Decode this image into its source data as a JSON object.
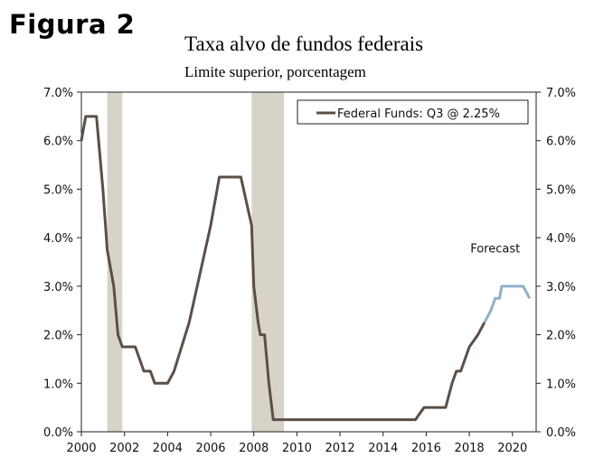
{
  "figure_label": "Figura 2",
  "chart_data": {
    "type": "line",
    "title": "Taxa alvo de fundos federais",
    "subtitle": "Limite superior, porcentagem",
    "xlabel": "",
    "ylabel": "",
    "xlim": [
      2000,
      2021.1
    ],
    "ylim": [
      0,
      7
    ],
    "x_ticks": [
      2000,
      2002,
      2004,
      2006,
      2008,
      2010,
      2012,
      2014,
      2016,
      2018,
      2020
    ],
    "y_ticks": [
      0,
      1,
      2,
      3,
      4,
      5,
      6,
      7
    ],
    "y_tick_labels": [
      "0.0%",
      "1.0%",
      "2.0%",
      "3.0%",
      "4.0%",
      "5.0%",
      "6.0%",
      "7.0%"
    ],
    "recessions": [
      {
        "start": 2001.2,
        "end": 2001.9
      },
      {
        "start": 2007.9,
        "end": 2009.4
      }
    ],
    "legend": {
      "label": "Federal Funds: Q3 @ 2.25%",
      "position": "top-right"
    },
    "annotation": {
      "text": "Forecast",
      "x": 2019.2,
      "y": 3.7
    },
    "colors": {
      "actual": "#5b4f46",
      "forecast": "#8fb0c8",
      "recession": "#d8d3c8"
    },
    "series": [
      {
        "name": "Federal Funds",
        "x": [
          2000.0,
          2000.2,
          2000.4,
          2000.7,
          2001.0,
          2001.2,
          2001.5,
          2001.7,
          2001.9,
          2002.5,
          2002.9,
          2003.0,
          2003.2,
          2003.4,
          2004.0,
          2004.3,
          2005.0,
          2005.5,
          2006.0,
          2006.4,
          2007.0,
          2007.4,
          2007.9,
          2008.0,
          2008.2,
          2008.3,
          2008.5,
          2008.7,
          2008.9,
          2009.0,
          2015.5,
          2015.9,
          2016.9,
          2017.2,
          2017.4,
          2017.6,
          2018.0,
          2018.4,
          2018.7
        ],
        "values": [
          6.0,
          6.5,
          6.5,
          6.5,
          5.0,
          3.75,
          3.0,
          2.0,
          1.75,
          1.75,
          1.25,
          1.25,
          1.25,
          1.0,
          1.0,
          1.25,
          2.25,
          3.25,
          4.25,
          5.25,
          5.25,
          5.25,
          4.25,
          3.0,
          2.25,
          2.0,
          2.0,
          1.0,
          0.25,
          0.25,
          0.25,
          0.5,
          0.5,
          1.0,
          1.25,
          1.25,
          1.75,
          2.0,
          2.25
        ]
      },
      {
        "name": "Forecast",
        "x": [
          2018.7,
          2019.0,
          2019.2,
          2019.4,
          2019.5,
          2020.0,
          2020.5,
          2020.8
        ],
        "values": [
          2.25,
          2.5,
          2.75,
          2.75,
          3.0,
          3.0,
          3.0,
          2.75
        ]
      }
    ]
  }
}
